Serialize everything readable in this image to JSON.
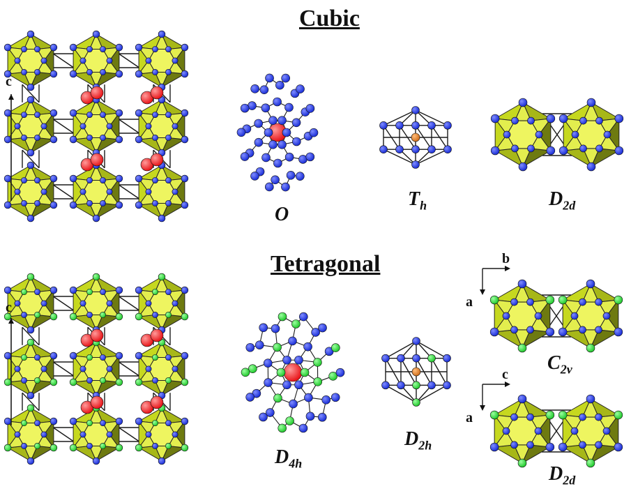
{
  "titles": {
    "cubic": "Cubic",
    "tetragonal": "Tetragonal"
  },
  "cubic": {
    "axis_label": "c",
    "labels": {
      "cage": "O",
      "icosa": "T",
      "icosa_sub": "h",
      "pair": "D",
      "pair_sub": "2d"
    }
  },
  "tetragonal": {
    "axis_label": "c",
    "labels": {
      "cage": "D",
      "cage_sub": "4h",
      "icosa": "D",
      "icosa_sub": "2h",
      "pair_top": "C",
      "pair_top_sub": "2v",
      "pair_bottom": "D",
      "pair_bottom_sub": "2d"
    },
    "top_axes": {
      "h": "b",
      "v": "a"
    },
    "bottom_axes": {
      "h": "c",
      "v": "a"
    }
  },
  "colors": {
    "polyhedron": "#c6d81f",
    "polyhedron_dark": "#6e7a10",
    "atom_blue": "#1a2ed6",
    "atom_green": "#22c92e",
    "atom_red": "#e8161a",
    "atom_orange": "#d0701f",
    "bond": "#1a1a1a"
  }
}
